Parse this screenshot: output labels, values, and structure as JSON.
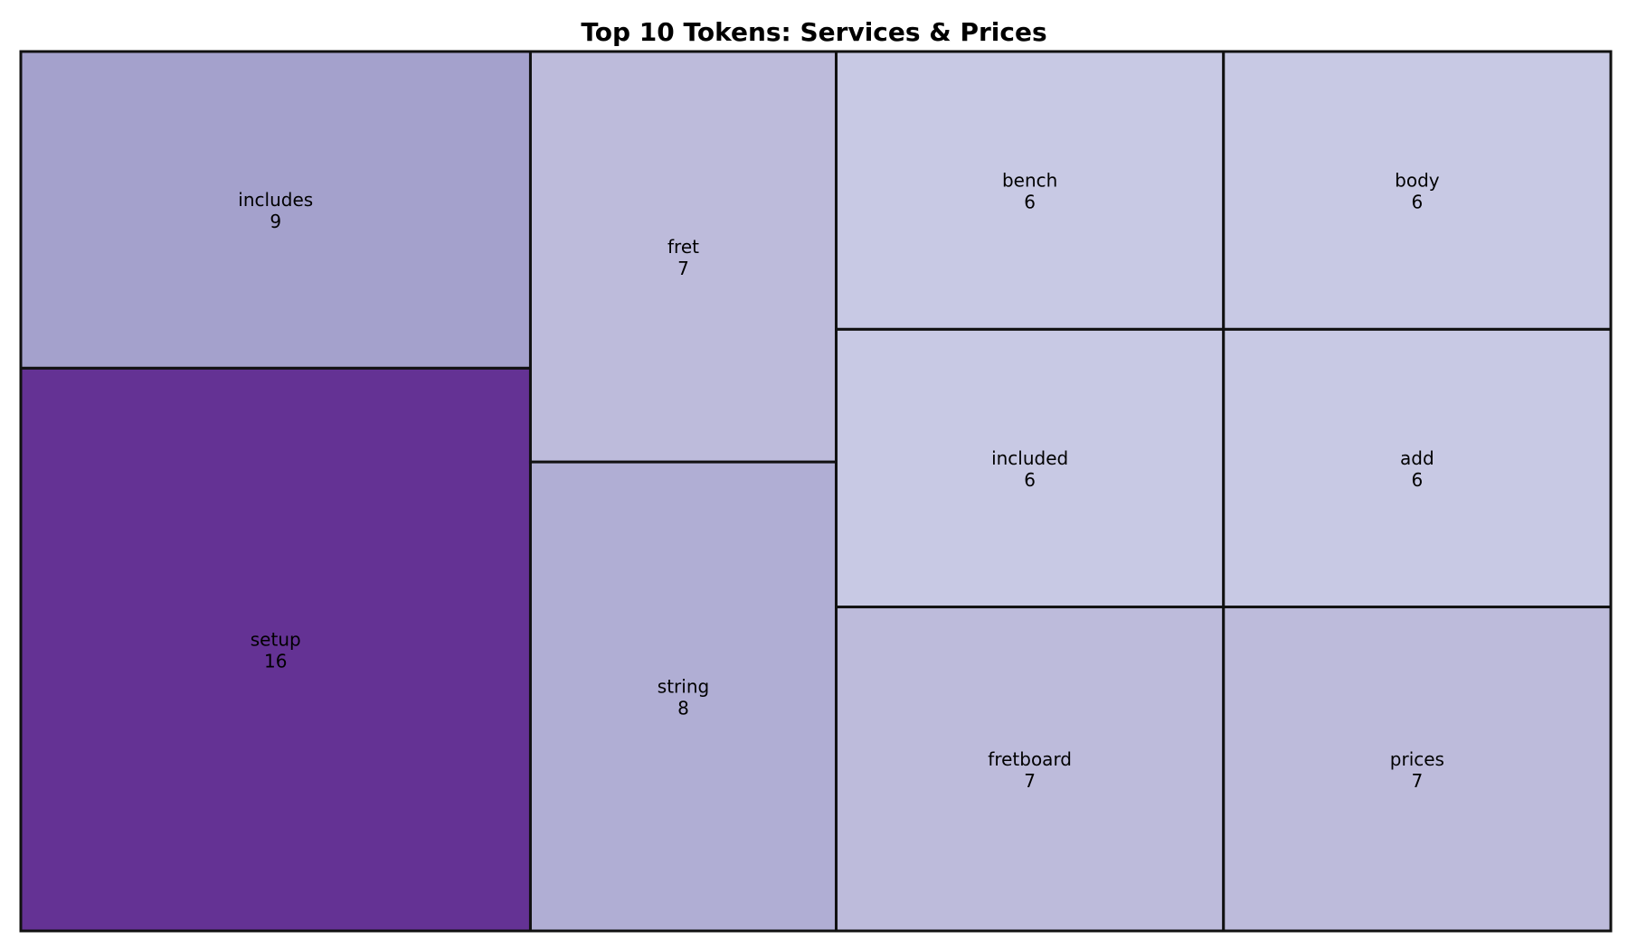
{
  "chart_data": {
    "type": "treemap",
    "title": "Top 10 Tokens: Services & Prices",
    "items": [
      {
        "label": "setup",
        "value": 16,
        "color": "#643294"
      },
      {
        "label": "includes",
        "value": 9,
        "color": "#a4a1cc"
      },
      {
        "label": "string",
        "value": 8,
        "color": "#b0aed4"
      },
      {
        "label": "fret",
        "value": 7,
        "color": "#bdbbdb"
      },
      {
        "label": "fretboard",
        "value": 7,
        "color": "#bdbbdb"
      },
      {
        "label": "prices",
        "value": 7,
        "color": "#bdbbdb"
      },
      {
        "label": "included",
        "value": 6,
        "color": "#c8c9e4"
      },
      {
        "label": "bench",
        "value": 6,
        "color": "#c8c9e4"
      },
      {
        "label": "add",
        "value": 6,
        "color": "#c8c9e4"
      },
      {
        "label": "body",
        "value": 6,
        "color": "#c8c9e4"
      }
    ]
  }
}
